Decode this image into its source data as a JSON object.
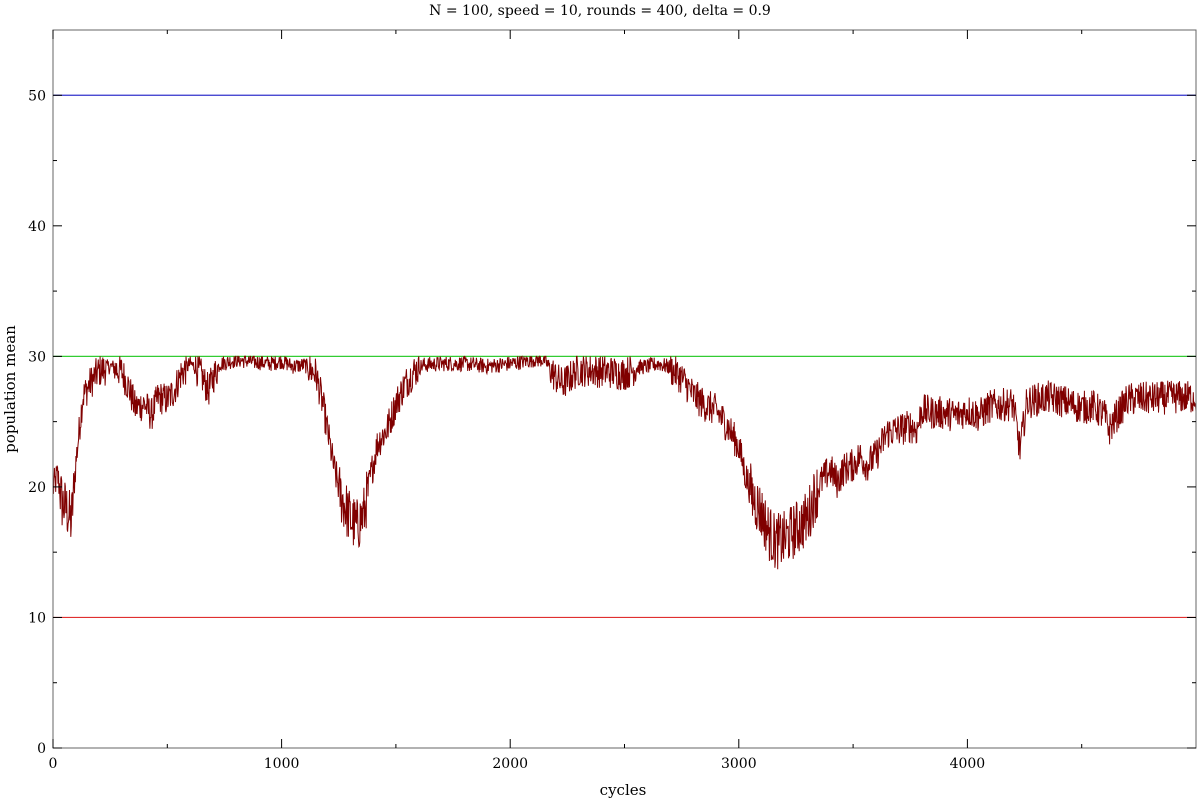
{
  "chart_data": {
    "type": "line",
    "title": "N = 100, speed = 10, rounds = 400, delta = 0.9",
    "xlabel": "cycles",
    "ylabel": "population mean",
    "xlim": [
      0,
      5000
    ],
    "ylim": [
      0,
      55
    ],
    "x_ticks": [
      0,
      1000,
      2000,
      3000,
      4000
    ],
    "x_tick_labels": [
      "0",
      "1000",
      "2000",
      "3000",
      "4000"
    ],
    "y_ticks": [
      0,
      10,
      20,
      30,
      40,
      50
    ],
    "y_tick_labels": [
      "0",
      "10",
      "20",
      "30",
      "40",
      "50"
    ],
    "grid": false,
    "reference_lines": [
      {
        "y": 50,
        "color": "#3333cc"
      },
      {
        "y": 30,
        "color": "#33cc33"
      },
      {
        "y": 10,
        "color": "#e03030"
      }
    ],
    "series": [
      {
        "color": "#800000",
        "x": [
          0,
          20,
          40,
          60,
          80,
          100,
          130,
          160,
          200,
          250,
          300,
          330,
          360,
          400,
          430,
          460,
          500,
          530,
          560,
          600,
          640,
          680,
          700,
          730,
          760,
          800,
          850,
          900,
          950,
          1000,
          1050,
          1100,
          1150,
          1180,
          1200,
          1230,
          1260,
          1290,
          1310,
          1330,
          1360,
          1390,
          1420,
          1460,
          1500,
          1540,
          1580,
          1620,
          1700,
          1800,
          1900,
          2000,
          2100,
          2150,
          2200,
          2230,
          2260,
          2300,
          2400,
          2500,
          2550,
          2600,
          2650,
          2700,
          2750,
          2800,
          2850,
          2900,
          2950,
          3000,
          3030,
          3060,
          3100,
          3130,
          3160,
          3200,
          3250,
          3300,
          3330,
          3360,
          3400,
          3430,
          3460,
          3500,
          3530,
          3560,
          3600,
          3650,
          3700,
          3750,
          3780,
          3800,
          3850,
          3900,
          3950,
          4000,
          4050,
          4100,
          4150,
          4200,
          4230,
          4260,
          4300,
          4350,
          4400,
          4450,
          4500,
          4550,
          4600,
          4620,
          4650,
          4700,
          4750,
          4800,
          4900,
          4950,
          5000
        ],
        "values": [
          20,
          21,
          19,
          18.5,
          17.5,
          22,
          27,
          28,
          29,
          29.3,
          29,
          27.8,
          26.2,
          26.5,
          25.6,
          27,
          26.8,
          27.5,
          28.8,
          29.5,
          29,
          27.5,
          28.5,
          29.5,
          29.6,
          29.8,
          29.7,
          29.6,
          29.5,
          29.7,
          29.3,
          29.4,
          28.8,
          26.5,
          24.5,
          21.5,
          19.5,
          18.2,
          17.5,
          17.2,
          18.2,
          21,
          23.5,
          24.5,
          26.5,
          28,
          29,
          29.4,
          29.5,
          29.5,
          29.3,
          29.5,
          29.8,
          29.8,
          28.5,
          28,
          28.5,
          29.1,
          29,
          28.8,
          29.2,
          29.3,
          29.5,
          29.2,
          28.5,
          27.2,
          26.4,
          26,
          24.8,
          23.2,
          21,
          19.5,
          18.2,
          16.8,
          16,
          16.2,
          17,
          17.8,
          19.5,
          20.5,
          21.5,
          20.5,
          21.5,
          21.8,
          22.5,
          21.8,
          22.5,
          24.3,
          24.5,
          24.8,
          24.5,
          26,
          25.8,
          25.8,
          25.6,
          26,
          25.6,
          26.3,
          26.4,
          26.5,
          23,
          26.6,
          26.8,
          27,
          26.8,
          26.5,
          26.2,
          26.3,
          25.6,
          24.5,
          25.5,
          26.8,
          26.9,
          26.9,
          27,
          27,
          27
        ]
      }
    ]
  }
}
